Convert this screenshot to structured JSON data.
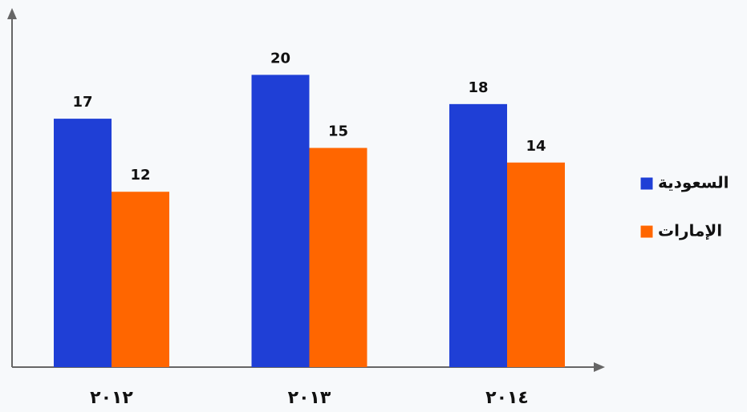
{
  "chart_data": {
    "type": "bar",
    "categories": [
      "٢٠١٢",
      "٢٠١٣",
      "٢٠١٤"
    ],
    "series": [
      {
        "name": "السعودية",
        "color": "#1f3fd6",
        "values": [
          17,
          20,
          18
        ]
      },
      {
        "name": "الإمارات",
        "color": "#ff6600",
        "values": [
          12,
          15,
          14
        ]
      }
    ],
    "ylim": [
      0,
      24.3
    ],
    "legend": "right"
  }
}
